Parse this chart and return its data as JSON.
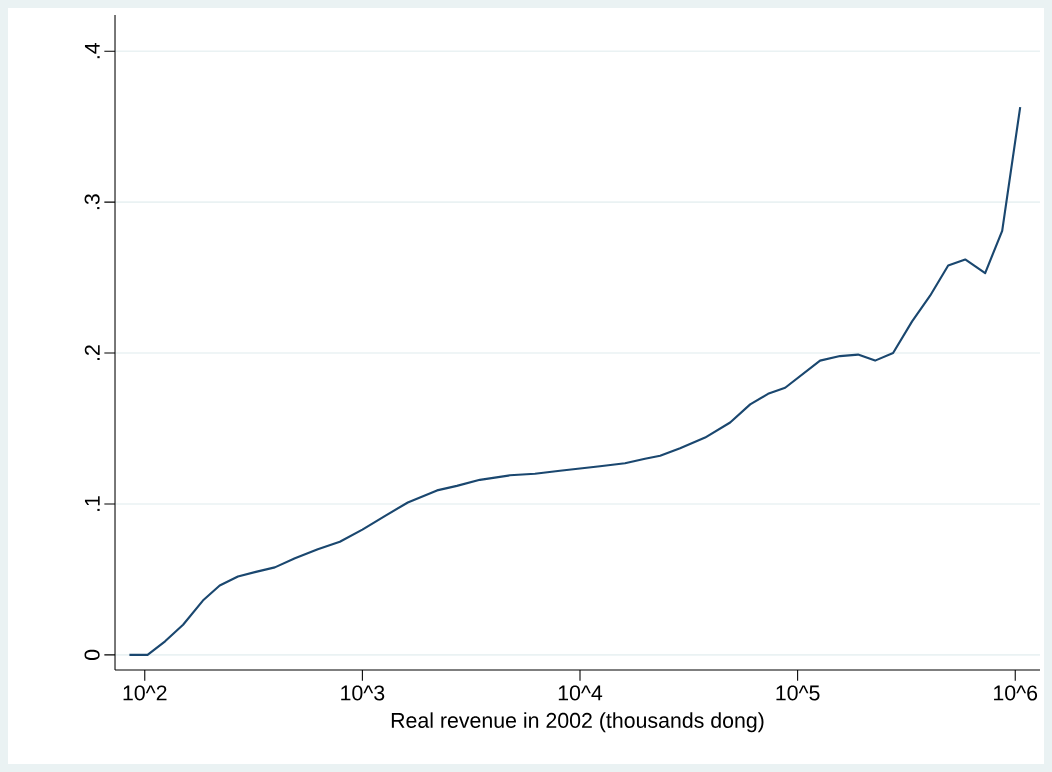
{
  "chart_data": {
    "type": "line",
    "xlabel": "Real revenue in 2002 (thousands dong)",
    "log": "x",
    "grid": "y",
    "xlim": [
      73,
      1300000
    ],
    "ylim": [
      -0.01,
      0.424
    ],
    "xticks": [
      {
        "value": 100,
        "label": "10^2"
      },
      {
        "value": 1000,
        "label": "10^3"
      },
      {
        "value": 10000,
        "label": "10^4"
      },
      {
        "value": 100000,
        "label": "10^5"
      },
      {
        "value": 1000000,
        "label": "10^6"
      }
    ],
    "yticks": [
      {
        "value": 0,
        "label": "0"
      },
      {
        "value": 0.1,
        "label": ".1"
      },
      {
        "value": 0.2,
        "label": ".2"
      },
      {
        "value": 0.3,
        "label": ".3"
      },
      {
        "value": 0.4,
        "label": ".4"
      }
    ],
    "x": [
      85,
      103,
      124,
      150,
      185,
      221,
      268,
      324,
      396,
      490,
      624,
      788,
      1000,
      1267,
      1617,
      2203,
      2718,
      3467,
      4764,
      6209,
      8091,
      12360,
      16100,
      19900,
      23350,
      28840,
      37580,
      48980,
      60540,
      73140,
      87650,
      126800,
      156600,
      189600,
      227000,
      274600,
      335800,
      406300,
      491900,
      589000,
      727600,
      871000,
      1054000
    ],
    "series": [
      {
        "color": "#1a476f",
        "values": [
          0,
          0,
          0.009,
          0.02,
          0.036,
          0.046,
          0.052,
          0.055,
          0.058,
          0.064,
          0.07,
          0.075,
          0.083,
          0.092,
          0.101,
          0.109,
          0.112,
          0.116,
          0.119,
          0.12,
          0.122,
          0.125,
          0.127,
          0.13,
          0.132,
          0.137,
          0.144,
          0.154,
          0.166,
          0.173,
          0.177,
          0.195,
          0.198,
          0.199,
          0.195,
          0.2,
          0.221,
          0.238,
          0.258,
          0.262,
          0.253,
          0.281,
          0.363
        ]
      }
    ]
  }
}
